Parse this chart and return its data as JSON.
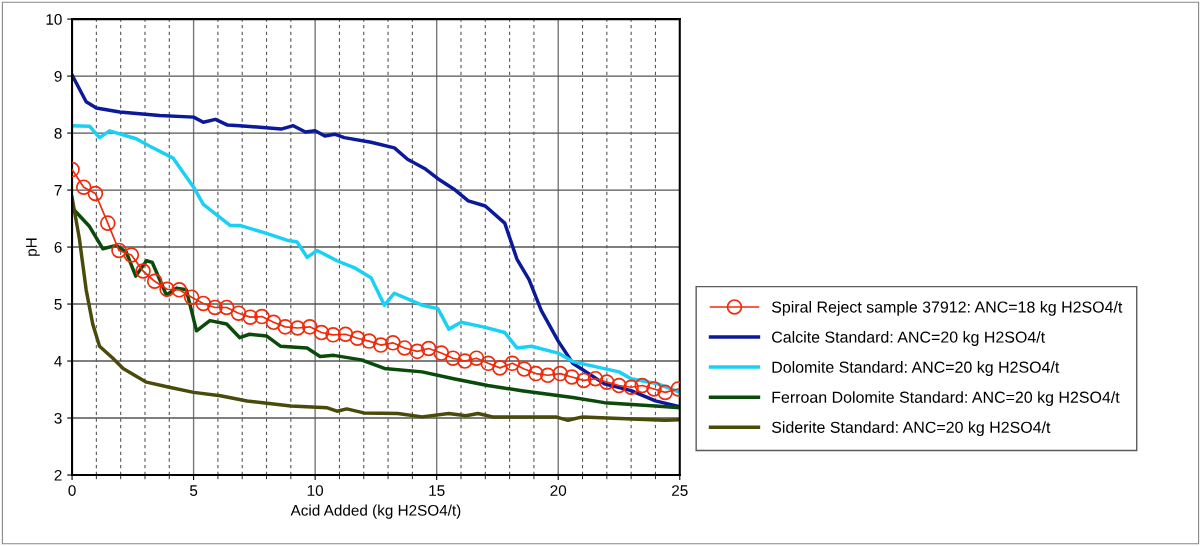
{
  "chart_data": {
    "type": "line",
    "xlabel": "Acid Added (kg H2SO4/t)",
    "ylabel": "pH",
    "xlim": [
      0,
      25
    ],
    "xticks": [
      0,
      5,
      10,
      15,
      20,
      25
    ],
    "ylim": [
      2,
      10
    ],
    "yticks": [
      2,
      3,
      4,
      5,
      6,
      7,
      8,
      9,
      10
    ],
    "grid": true,
    "legend": "right",
    "line_style": "solid",
    "series": [
      {
        "name": "Spiral Reject sample 37912: ANC=18 kg H2SO4/t",
        "color": "#f02a0a",
        "marker": "circle",
        "x": [
          0,
          0.48,
          0.96,
          1.47,
          1.93,
          2.44,
          2.92,
          3.4,
          3.91,
          4.41,
          4.92,
          5.4,
          5.88,
          6.36,
          6.85,
          7.33,
          7.81,
          8.29,
          8.77,
          9.28,
          9.78,
          10.26,
          10.74,
          11.25,
          11.74,
          12.22,
          12.7,
          13.2,
          13.68,
          14.2,
          14.67,
          15.19,
          15.67,
          16.16,
          16.64,
          17.12,
          17.6,
          18.11,
          18.6,
          19.08,
          19.57,
          20.08,
          20.56,
          21.05,
          21.53,
          22.0,
          22.5,
          23.0,
          23.46,
          23.94,
          24.4,
          24.94
        ],
        "values": [
          7.36,
          7.05,
          6.94,
          6.42,
          5.94,
          5.86,
          5.58,
          5.4,
          5.26,
          5.25,
          5.12,
          5.01,
          4.94,
          4.94,
          4.84,
          4.77,
          4.78,
          4.68,
          4.6,
          4.58,
          4.6,
          4.5,
          4.46,
          4.47,
          4.4,
          4.35,
          4.28,
          4.32,
          4.23,
          4.17,
          4.22,
          4.14,
          4.05,
          4.0,
          4.05,
          3.96,
          3.88,
          3.96,
          3.86,
          3.78,
          3.75,
          3.78,
          3.72,
          3.66,
          3.69,
          3.63,
          3.57,
          3.54,
          3.57,
          3.51,
          3.45,
          3.51
        ]
      },
      {
        "name": "Calcite Standard: ANC=20 kg H2SO4/t",
        "color": "#0a1a9a",
        "marker": "none",
        "x": [
          0,
          0.58,
          1.0,
          1.96,
          3.6,
          5.0,
          5.4,
          5.9,
          6.4,
          6.9,
          8.6,
          9.1,
          9.6,
          10.0,
          10.4,
          10.8,
          11.2,
          12.3,
          13.26,
          13.8,
          14.5,
          15.05,
          15.7,
          16.3,
          17.0,
          17.8,
          18.3,
          18.8,
          19.3,
          20.0,
          20.6,
          21.9,
          23.0,
          24.0,
          25.0
        ],
        "values": [
          9.02,
          8.55,
          8.44,
          8.37,
          8.31,
          8.28,
          8.19,
          8.24,
          8.14,
          8.13,
          8.07,
          8.13,
          8.02,
          8.04,
          7.95,
          7.98,
          7.92,
          7.84,
          7.74,
          7.54,
          7.38,
          7.2,
          7.02,
          6.81,
          6.72,
          6.42,
          5.79,
          5.43,
          4.89,
          4.35,
          3.96,
          3.6,
          3.48,
          3.3,
          3.2
        ]
      },
      {
        "name": "Dolomite Standard: ANC=20 kg H2SO4/t",
        "color": "#1ad0f5",
        "marker": "none",
        "x": [
          0,
          0.72,
          1.13,
          1.54,
          2.64,
          3.2,
          4.16,
          5.0,
          5.4,
          6.5,
          6.9,
          8.0,
          8.84,
          9.26,
          9.67,
          10.08,
          10.9,
          11.6,
          12.3,
          12.85,
          13.26,
          14.4,
          15.05,
          15.5,
          16.0,
          17.0,
          17.8,
          18.3,
          18.9,
          20.0,
          20.6,
          22.5,
          23.0,
          24.1,
          25.0
        ],
        "values": [
          8.13,
          8.12,
          7.92,
          8.04,
          7.9,
          7.77,
          7.56,
          7.05,
          6.75,
          6.38,
          6.38,
          6.24,
          6.12,
          6.09,
          5.82,
          5.94,
          5.76,
          5.64,
          5.46,
          4.98,
          5.19,
          4.98,
          4.92,
          4.56,
          4.68,
          4.59,
          4.5,
          4.23,
          4.26,
          4.14,
          3.99,
          3.81,
          3.69,
          3.6,
          3.45
        ]
      },
      {
        "name": "Ferroan Dolomite Standard: ANC=20 kg H2SO4/t",
        "color": "#0a4a0a",
        "marker": "none",
        "x": [
          0,
          0.72,
          1.27,
          1.82,
          2.23,
          2.62,
          3.06,
          3.3,
          3.88,
          4.3,
          4.7,
          5.12,
          5.67,
          6.36,
          6.9,
          7.3,
          8.0,
          8.57,
          9.67,
          10.2,
          10.77,
          11.9,
          12.85,
          14.4,
          15.7,
          17.1,
          18.5,
          20.6,
          21.9,
          24.0,
          25.0
        ],
        "values": [
          6.69,
          6.36,
          5.97,
          6.03,
          5.91,
          5.49,
          5.76,
          5.73,
          5.16,
          5.28,
          5.25,
          4.53,
          4.71,
          4.65,
          4.41,
          4.47,
          4.44,
          4.26,
          4.23,
          4.08,
          4.1,
          4.02,
          3.87,
          3.81,
          3.69,
          3.57,
          3.48,
          3.36,
          3.27,
          3.21,
          3.18
        ]
      },
      {
        "name": "Siderite Standard: ANC=20 kg H2SO4/t",
        "color": "#4a4a0a",
        "marker": "none",
        "x": [
          0,
          0.3,
          0.58,
          0.85,
          1.13,
          1.68,
          2.1,
          3.06,
          4.0,
          5.0,
          6.1,
          7.2,
          9.0,
          10.5,
          10.9,
          11.3,
          12.0,
          13.4,
          14.4,
          15.5,
          16.2,
          16.7,
          17.3,
          19.9,
          20.4,
          21.0,
          23.3,
          24.4,
          25.0
        ],
        "values": [
          6.87,
          6.15,
          5.25,
          4.65,
          4.26,
          4.05,
          3.87,
          3.63,
          3.54,
          3.45,
          3.39,
          3.3,
          3.21,
          3.18,
          3.12,
          3.16,
          3.09,
          3.08,
          3.02,
          3.08,
          3.04,
          3.08,
          3.02,
          3.02,
          2.96,
          3.02,
          2.98,
          2.96,
          2.97
        ]
      }
    ]
  }
}
